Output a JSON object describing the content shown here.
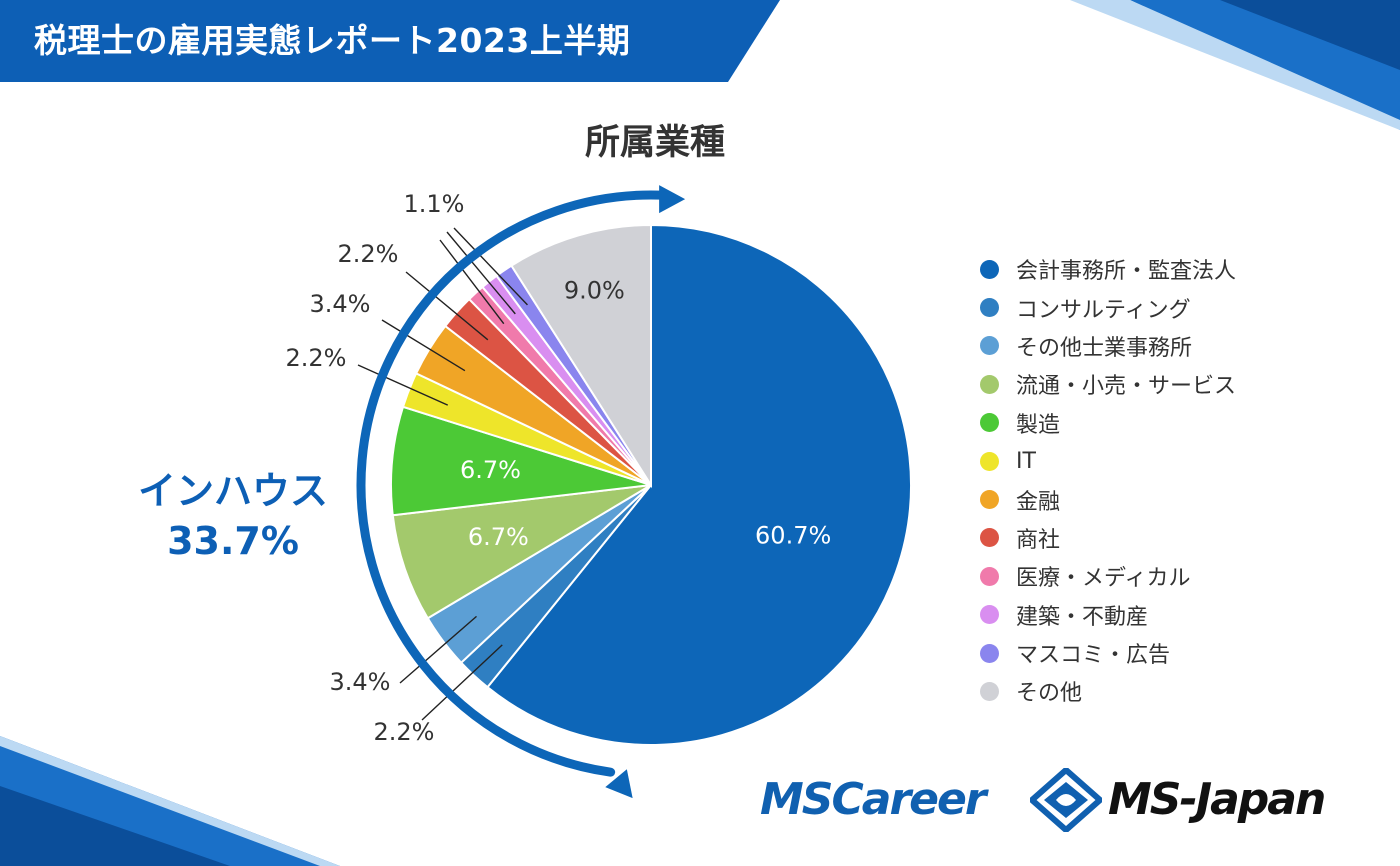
{
  "header": {
    "title": "税理士の雇用実態レポート2023上半期"
  },
  "chart_data": {
    "type": "pie",
    "title": "所属業種",
    "categories": [
      "会計事務所・監査法人",
      "コンサルティング",
      "その他士業事務所",
      "流通・小売・サービス",
      "製造",
      "IT",
      "金融",
      "商社",
      "医療・メディカル",
      "建築・不動産",
      "マスコミ・広告",
      "その他"
    ],
    "values": [
      60.7,
      2.2,
      3.4,
      6.7,
      6.7,
      2.2,
      3.4,
      2.2,
      1.1,
      1.1,
      1.1,
      9.0
    ],
    "labels": [
      "60.7%",
      "2.2%",
      "3.4%",
      "6.7%",
      "6.7%",
      "2.2%",
      "3.4%",
      "2.2%",
      "",
      "1.1%",
      "",
      "9.0%"
    ],
    "colors": [
      "#0d66b8",
      "#2f7fc2",
      "#5c9fd5",
      "#a3c96c",
      "#4cc936",
      "#eee52a",
      "#f0a526",
      "#dc5444",
      "#f07aab",
      "#d98ef0",
      "#8a85ee",
      "#d0d1d6"
    ],
    "legend_position": "right",
    "annotation": {
      "label": "インハウス",
      "value": "33.7%"
    }
  },
  "colors": {
    "brand": "#0d5fb5"
  },
  "logos": {
    "mscareer": "MSCareer",
    "msjapan": "MS-Japan"
  }
}
